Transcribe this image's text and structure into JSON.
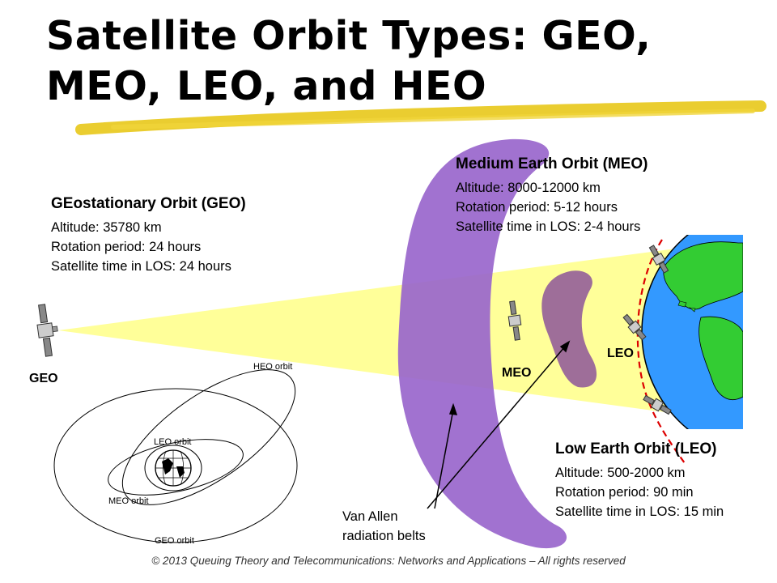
{
  "title": {
    "line1": "Satellite Orbit Types: GEO,",
    "line2": "MEO, LEO, and HEO"
  },
  "geo": {
    "heading": "GEostationary Orbit (GEO)",
    "altitude": "Altitude: 35780 km",
    "rotation": "Rotation period: 24 hours",
    "los": "Satellite time in LOS: 24 hours",
    "satellite_label": "GEO"
  },
  "meo": {
    "heading": "Medium Earth Orbit (MEO)",
    "altitude": "Altitude: 8000-12000 km",
    "rotation": "Rotation period: 5-12 hours",
    "los": "Satellite time in LOS: 2-4 hours",
    "satellite_label": "MEO"
  },
  "leo": {
    "heading": "Low Earth Orbit (LEO)",
    "altitude": "Altitude: 500-2000 km",
    "rotation": "Rotation period: 90 min",
    "los": "Satellite time in LOS: 15 min",
    "satellite_label": "LEO"
  },
  "van_allen": {
    "line1": "Van Allen",
    "line2": "radiation belts"
  },
  "orbit_diagram": {
    "heo": "HEO orbit",
    "leo": "LEO orbit",
    "meo": "MEO orbit",
    "geo": "GEO orbit"
  },
  "footer": "© 2013 Queuing Theory and Telecommunications: Networks and Applications – All rights reserved",
  "colors": {
    "beam": "#ffff99",
    "belt": "#9966cc",
    "ocean": "#3399ff",
    "land": "#33cc33",
    "leo_track": "#dd0000",
    "highlighter": "#e8c81a"
  }
}
